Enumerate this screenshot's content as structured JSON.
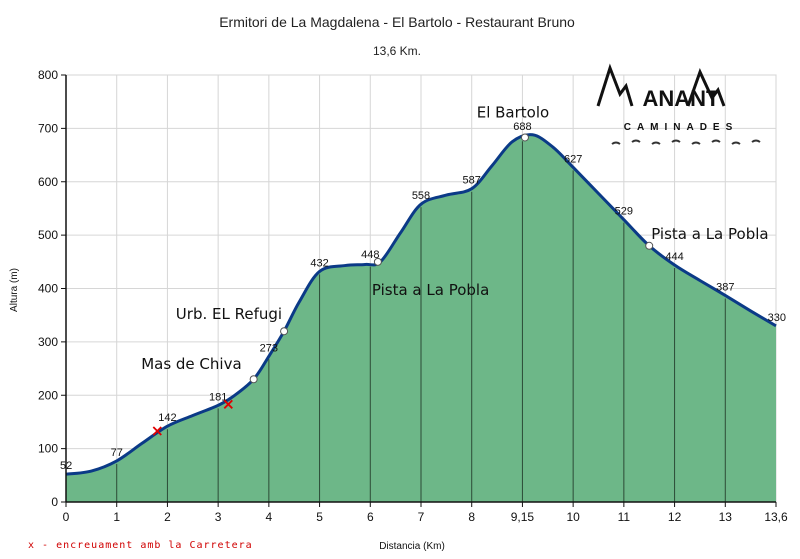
{
  "chart_data": {
    "type": "area",
    "title": "Ermitori de La Magdalena - El Bartolo - Restaurant Bruno",
    "subtitle": "13,6 Km.",
    "xlabel": "Distancia (Km)",
    "ylabel": "Altura (m)",
    "xlim": [
      0,
      14
    ],
    "ylim": [
      0,
      800
    ],
    "y_ticks": [
      0,
      100,
      200,
      300,
      400,
      500,
      600,
      700,
      800
    ],
    "x_ticks": [
      {
        "value": 0,
        "label": "0"
      },
      {
        "value": 1,
        "label": "1"
      },
      {
        "value": 2,
        "label": "2"
      },
      {
        "value": 3,
        "label": "3"
      },
      {
        "value": 4,
        "label": "4"
      },
      {
        "value": 5,
        "label": "5"
      },
      {
        "value": 6,
        "label": "6"
      },
      {
        "value": 7,
        "label": "7"
      },
      {
        "value": 8,
        "label": "8"
      },
      {
        "value": 9,
        "label": "9,15"
      },
      {
        "value": 10,
        "label": "10"
      },
      {
        "value": 11,
        "label": "11"
      },
      {
        "value": 12,
        "label": "12"
      },
      {
        "value": 13,
        "label": "13"
      },
      {
        "value": 14,
        "label": "13,6"
      }
    ],
    "grid": true,
    "fill_color": "#6db788",
    "line_color": "#0b3a87",
    "profile": [
      {
        "x": 0,
        "y": 52
      },
      {
        "x": 0.5,
        "y": 58
      },
      {
        "x": 1,
        "y": 77
      },
      {
        "x": 1.5,
        "y": 110
      },
      {
        "x": 2,
        "y": 142
      },
      {
        "x": 2.5,
        "y": 162
      },
      {
        "x": 3,
        "y": 181
      },
      {
        "x": 3.3,
        "y": 198
      },
      {
        "x": 3.7,
        "y": 230
      },
      {
        "x": 4,
        "y": 273
      },
      {
        "x": 4.3,
        "y": 320
      },
      {
        "x": 4.6,
        "y": 375
      },
      {
        "x": 5,
        "y": 432
      },
      {
        "x": 5.5,
        "y": 443
      },
      {
        "x": 5.9,
        "y": 445
      },
      {
        "x": 6.2,
        "y": 450
      },
      {
        "x": 6.6,
        "y": 505
      },
      {
        "x": 7,
        "y": 558
      },
      {
        "x": 7.5,
        "y": 575
      },
      {
        "x": 8,
        "y": 587
      },
      {
        "x": 8.4,
        "y": 630
      },
      {
        "x": 8.8,
        "y": 675
      },
      {
        "x": 9.2,
        "y": 688
      },
      {
        "x": 9.6,
        "y": 665
      },
      {
        "x": 10,
        "y": 627
      },
      {
        "x": 10.5,
        "y": 578
      },
      {
        "x": 11,
        "y": 529
      },
      {
        "x": 11.5,
        "y": 480
      },
      {
        "x": 12,
        "y": 444
      },
      {
        "x": 12.5,
        "y": 415
      },
      {
        "x": 13,
        "y": 387
      },
      {
        "x": 13.5,
        "y": 358
      },
      {
        "x": 14,
        "y": 330
      }
    ],
    "data_labels": [
      {
        "x": 0,
        "y": 52,
        "label": "52"
      },
      {
        "x": 1,
        "y": 77,
        "label": "77"
      },
      {
        "x": 2,
        "y": 142,
        "label": "142"
      },
      {
        "x": 3,
        "y": 181,
        "label": "181"
      },
      {
        "x": 4,
        "y": 273,
        "label": "273"
      },
      {
        "x": 5,
        "y": 432,
        "label": "432"
      },
      {
        "x": 6,
        "y": 448,
        "label": "448"
      },
      {
        "x": 7,
        "y": 558,
        "label": "558"
      },
      {
        "x": 8,
        "y": 587,
        "label": "587"
      },
      {
        "x": 9,
        "y": 688,
        "label": "688"
      },
      {
        "x": 10,
        "y": 627,
        "label": "627"
      },
      {
        "x": 11,
        "y": 529,
        "label": "529"
      },
      {
        "x": 12,
        "y": 444,
        "label": "444"
      },
      {
        "x": 13,
        "y": 387,
        "label": "387"
      },
      {
        "x": 14,
        "y": 330,
        "label": "330"
      }
    ],
    "waypoints": [
      {
        "name": "Mas de Chiva",
        "x": 3.7,
        "y": 230
      },
      {
        "name": "Urb. EL Refugi",
        "x": 4.3,
        "y": 320
      },
      {
        "name": "Pista a La Pobla",
        "x": 6.15,
        "y": 450
      },
      {
        "name": "El Bartolo",
        "x": 9.05,
        "y": 683
      },
      {
        "name": "Pista a La Pobla",
        "x": 11.5,
        "y": 480
      }
    ],
    "road_crossings": [
      {
        "x": 1.8,
        "y": 133
      },
      {
        "x": 3.2,
        "y": 183
      }
    ],
    "footnote": "x - encreuament amb la Carretera"
  },
  "logo": {
    "text_top": "ANANT",
    "text_bottom": "CAMINADES",
    "color": "#111111"
  }
}
